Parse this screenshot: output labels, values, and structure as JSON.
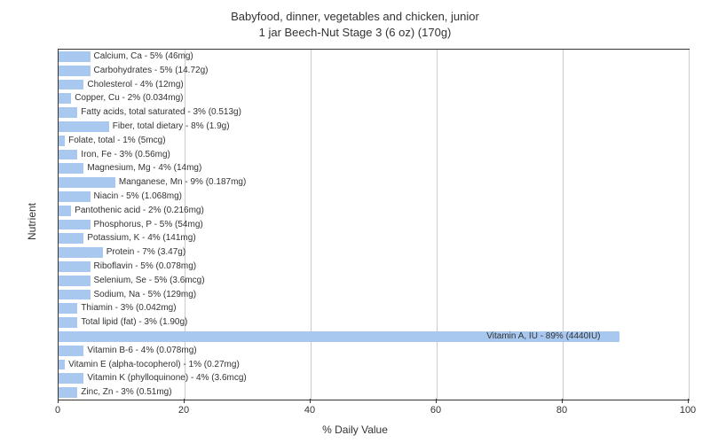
{
  "title_line1": "Babyfood, dinner, vegetables and chicken, junior",
  "title_line2": "1 jar Beech-Nut Stage 3 (6 oz) (170g)",
  "y_axis_label": "Nutrient",
  "x_axis_label": "% Daily Value",
  "chart": {
    "type": "bar",
    "xlim": [
      0,
      100
    ],
    "xtick_step": 20,
    "xticks": [
      0,
      20,
      40,
      60,
      80,
      100
    ],
    "bar_color": "#a8c8f0",
    "grid_color": "#cccccc",
    "background_color": "#ffffff",
    "label_fontsize": 10,
    "axis_fontsize": 12,
    "title_fontsize": 13
  },
  "nutrients": [
    {
      "label": "Calcium, Ca - 5% (46mg)",
      "value": 5
    },
    {
      "label": "Carbohydrates - 5% (14.72g)",
      "value": 5
    },
    {
      "label": "Cholesterol - 4% (12mg)",
      "value": 4
    },
    {
      "label": "Copper, Cu - 2% (0.034mg)",
      "value": 2
    },
    {
      "label": "Fatty acids, total saturated - 3% (0.513g)",
      "value": 3
    },
    {
      "label": "Fiber, total dietary - 8% (1.9g)",
      "value": 8
    },
    {
      "label": "Folate, total - 1% (5mcg)",
      "value": 1
    },
    {
      "label": "Iron, Fe - 3% (0.56mg)",
      "value": 3
    },
    {
      "label": "Magnesium, Mg - 4% (14mg)",
      "value": 4
    },
    {
      "label": "Manganese, Mn - 9% (0.187mg)",
      "value": 9
    },
    {
      "label": "Niacin - 5% (1.068mg)",
      "value": 5
    },
    {
      "label": "Pantothenic acid - 2% (0.216mg)",
      "value": 2
    },
    {
      "label": "Phosphorus, P - 5% (54mg)",
      "value": 5
    },
    {
      "label": "Potassium, K - 4% (141mg)",
      "value": 4
    },
    {
      "label": "Protein - 7% (3.47g)",
      "value": 7
    },
    {
      "label": "Riboflavin - 5% (0.078mg)",
      "value": 5
    },
    {
      "label": "Selenium, Se - 5% (3.6mcg)",
      "value": 5
    },
    {
      "label": "Sodium, Na - 5% (129mg)",
      "value": 5
    },
    {
      "label": "Thiamin - 3% (0.042mg)",
      "value": 3
    },
    {
      "label": "Total lipid (fat) - 3% (1.90g)",
      "value": 3
    },
    {
      "label": "Vitamin A, IU - 89% (4440IU)",
      "value": 89
    },
    {
      "label": "Vitamin B-6 - 4% (0.078mg)",
      "value": 4
    },
    {
      "label": "Vitamin E (alpha-tocopherol) - 1% (0.27mg)",
      "value": 1
    },
    {
      "label": "Vitamin K (phylloquinone) - 4% (3.6mcg)",
      "value": 4
    },
    {
      "label": "Zinc, Zn - 3% (0.51mg)",
      "value": 3
    }
  ]
}
